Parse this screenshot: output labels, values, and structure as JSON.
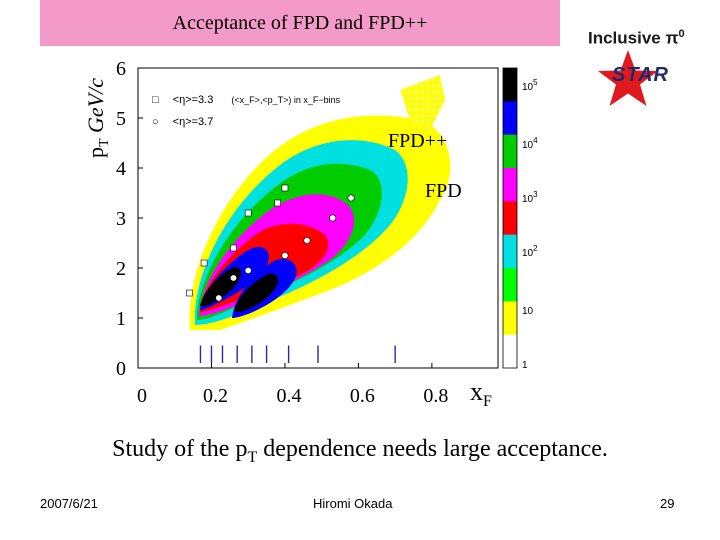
{
  "slide": {
    "title": "Acceptance of FPD and FPD++",
    "inclusive_label": "Inclusive",
    "inclusive_symbol": "π",
    "inclusive_sup": "0",
    "star_label": "STAR",
    "caption_pre": "Study of the p",
    "caption_sub": "T",
    "caption_post": " dependence needs large acceptance.",
    "footer_date": "2007/6/21",
    "footer_author": "Hiromi Okada",
    "footer_page": "29"
  },
  "chart_data": {
    "type": "heatmap",
    "title": "Acceptance of FPD and FPD++",
    "ylabel_main": "p",
    "ylabel_sub": "T",
    "ylabel_units": " GeV/c",
    "xlabel_main": "x",
    "xlabel_sub": "F",
    "xlim": [
      0,
      1.0
    ],
    "ylim": [
      0,
      6
    ],
    "xticks": [
      "0",
      "0.2",
      "0.4",
      "0.6",
      "0.8"
    ],
    "yticks": [
      "0",
      "1",
      "2",
      "3",
      "4",
      "5",
      "6"
    ],
    "xtick_values": [
      0,
      0.2,
      0.4,
      0.6,
      0.8
    ],
    "ytick_values": [
      0,
      1,
      2,
      3,
      4,
      5,
      6
    ],
    "region_labels": [
      "FPD++",
      "FPD"
    ],
    "legend": [
      {
        "marker": "□",
        "text": "<η>=3.3"
      },
      {
        "marker": "○",
        "text": "<η>=3.7"
      },
      {
        "marker": "",
        "text": "(<x_F>,<p_T>) in x_F−bins"
      }
    ],
    "colorbar": {
      "scale": "log",
      "labels": [
        "10^5",
        "10^4",
        "10^3",
        "10^2",
        "10",
        "1"
      ],
      "colors": [
        "#000000",
        "#0000ff",
        "#00cc00",
        "#ff00ff",
        "#ff0000",
        "#00e0e0",
        "#00ff00",
        "#ffff00",
        "#ffffff"
      ]
    },
    "bin_markers_xF": [
      0.17,
      0.2,
      0.23,
      0.27,
      0.31,
      0.35,
      0.41,
      0.49,
      0.7
    ],
    "series": [
      {
        "name": "<η>=3.3",
        "marker": "square",
        "x": [
          0.14,
          0.18,
          0.26,
          0.3,
          0.38,
          0.4
        ],
        "y": [
          1.5,
          2.1,
          2.4,
          3.1,
          3.3,
          3.6
        ]
      },
      {
        "name": "<η>=3.7",
        "marker": "circle",
        "x": [
          0.22,
          0.26,
          0.3,
          0.4,
          0.46,
          0.53,
          0.58
        ],
        "y": [
          1.4,
          1.8,
          1.95,
          2.25,
          2.55,
          3.0,
          3.4
        ]
      }
    ]
  }
}
